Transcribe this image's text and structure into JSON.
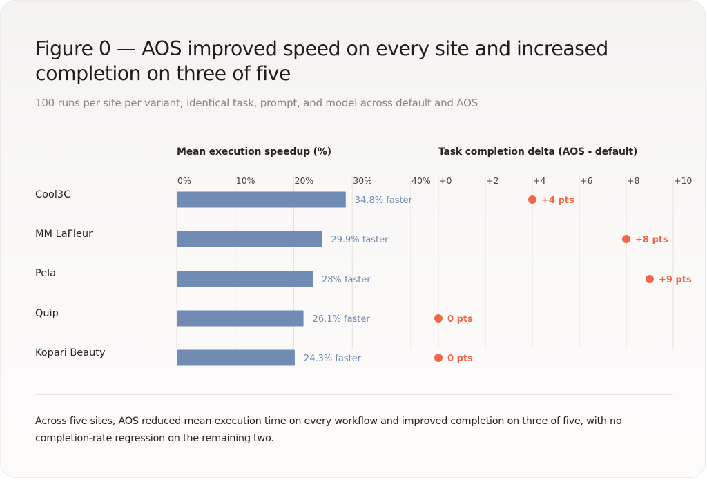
{
  "figure": {
    "title": "Figure 0 — AOS improved speed on every site and increased completion on three of five",
    "subtitle": "100 runs per site per variant; identical task, prompt, and model across default and AOS",
    "note": "Across five sites, AOS reduced mean execution time on every workflow and improved completion on three of five, with no completion-rate regression on the remaining two."
  },
  "chart_data": [
    {
      "type": "bar",
      "orientation": "horizontal",
      "title": "Mean execution speedup (%)",
      "categories": [
        "Cool3C",
        "MM LaFleur",
        "Pela",
        "Quip",
        "Kopari Beauty"
      ],
      "values": [
        34.8,
        29.9,
        28,
        26.1,
        24.3
      ],
      "data_labels": [
        "34.8% faster",
        "29.9% faster",
        "28% faster",
        "26.1% faster",
        "24.3% faster"
      ],
      "xlim": [
        0,
        40
      ],
      "xticks": [
        0,
        10,
        20,
        30,
        40
      ],
      "xtick_labels": [
        "0%",
        "10%",
        "20%",
        "30%",
        "40%"
      ],
      "grid": true,
      "color": "#718bb5"
    },
    {
      "type": "scatter",
      "title": "Task completion delta (AOS - default)",
      "categories": [
        "Cool3C",
        "MM LaFleur",
        "Pela",
        "Quip",
        "Kopari Beauty"
      ],
      "values": [
        4,
        8,
        9,
        0,
        0
      ],
      "data_labels": [
        "+4 pts",
        "+8 pts",
        "+9 pts",
        "0 pts",
        "0 pts"
      ],
      "xlim": [
        0,
        10
      ],
      "xticks": [
        0,
        2,
        4,
        6,
        8,
        10
      ],
      "xtick_labels": [
        "+0",
        "+2",
        "+4",
        "+6",
        "+8",
        "+10"
      ],
      "grid": true,
      "color": "#f0684a"
    }
  ]
}
